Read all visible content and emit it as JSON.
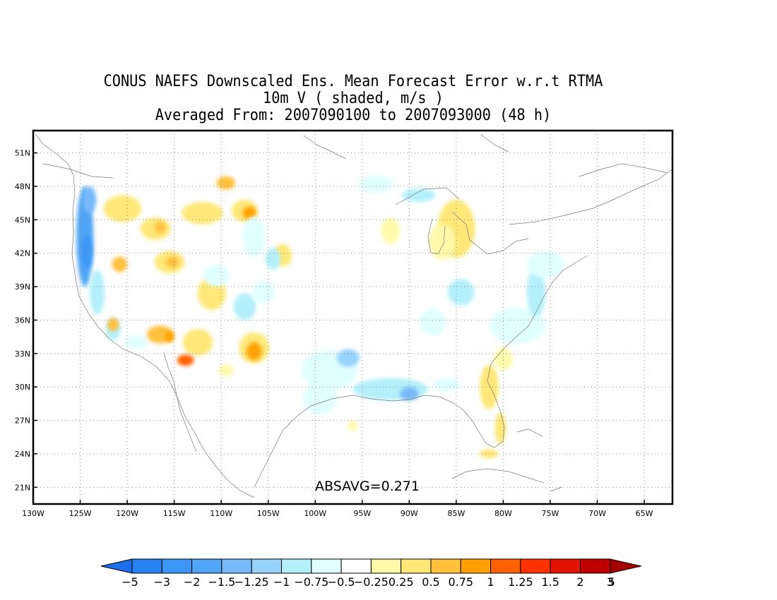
{
  "title_lines": [
    "CONUS NAEFS Downscaled Ens. Mean Forecast Error w.r.t RTMA",
    "10m V ( shaded, m/s )",
    "Averaged From: 2007090100 to 2007093000 (48 h)"
  ],
  "annotation": "ABSAVG=0.271",
  "map": {
    "lon_range": [
      -130,
      -62
    ],
    "lat_range": [
      19.5,
      53
    ],
    "lon_ticks": [
      {
        "v": -130,
        "label": "130W"
      },
      {
        "v": -125,
        "label": "125W"
      },
      {
        "v": -120,
        "label": "120W"
      },
      {
        "v": -115,
        "label": "115W"
      },
      {
        "v": -110,
        "label": "110W"
      },
      {
        "v": -105,
        "label": "105W"
      },
      {
        "v": -100,
        "label": "100W"
      },
      {
        "v": -95,
        "label": "95W"
      },
      {
        "v": -90,
        "label": "90W"
      },
      {
        "v": -85,
        "label": "85W"
      },
      {
        "v": -80,
        "label": "80W"
      },
      {
        "v": -75,
        "label": "75W"
      },
      {
        "v": -70,
        "label": "70W"
      },
      {
        "v": -65,
        "label": "65W"
      }
    ],
    "lat_ticks": [
      {
        "v": 21,
        "label": "21N"
      },
      {
        "v": 24,
        "label": "24N"
      },
      {
        "v": 27,
        "label": "27N"
      },
      {
        "v": 30,
        "label": "30N"
      },
      {
        "v": 33,
        "label": "33N"
      },
      {
        "v": 36,
        "label": "36N"
      },
      {
        "v": 39,
        "label": "39N"
      },
      {
        "v": 42,
        "label": "42N"
      },
      {
        "v": 45,
        "label": "45N"
      },
      {
        "v": 48,
        "label": "48N"
      },
      {
        "v": 51,
        "label": "51N"
      }
    ],
    "grid": true,
    "blobs": [
      {
        "lon": -124.5,
        "lat": 43.5,
        "rx": 0.9,
        "ry": 4.5,
        "level": -1.5
      },
      {
        "lon": -124.3,
        "lat": 42.1,
        "rx": 0.6,
        "ry": 1.5,
        "level": -2
      },
      {
        "lon": -124.0,
        "lat": 46.8,
        "rx": 0.7,
        "ry": 1.2,
        "level": -1.25
      },
      {
        "lon": -123.2,
        "lat": 38.5,
        "rx": 0.8,
        "ry": 2.0,
        "level": -0.75
      },
      {
        "lon": -121.5,
        "lat": 35.2,
        "rx": 0.8,
        "ry": 1.0,
        "level": -0.75
      },
      {
        "lon": -119.0,
        "lat": 34.0,
        "rx": 1.2,
        "ry": 0.6,
        "level": -0.5
      },
      {
        "lon": -120.5,
        "lat": 46.0,
        "rx": 2.0,
        "ry": 1.2,
        "level": 0.5
      },
      {
        "lon": -117.0,
        "lat": 44.2,
        "rx": 1.6,
        "ry": 1.0,
        "level": 0.5
      },
      {
        "lon": -116.5,
        "lat": 44.3,
        "rx": 0.6,
        "ry": 0.5,
        "level": 0.75
      },
      {
        "lon": -112.0,
        "lat": 45.6,
        "rx": 2.2,
        "ry": 1.0,
        "level": 0.5
      },
      {
        "lon": -109.5,
        "lat": 48.3,
        "rx": 1.0,
        "ry": 0.6,
        "level": 0.75
      },
      {
        "lon": -107.5,
        "lat": 45.8,
        "rx": 1.4,
        "ry": 1.0,
        "level": 0.5
      },
      {
        "lon": -107.0,
        "lat": 45.6,
        "rx": 0.7,
        "ry": 0.6,
        "level": 1
      },
      {
        "lon": -120.8,
        "lat": 41.0,
        "rx": 0.8,
        "ry": 0.7,
        "level": 0.75
      },
      {
        "lon": -115.5,
        "lat": 41.2,
        "rx": 1.6,
        "ry": 1.0,
        "level": 0.5
      },
      {
        "lon": -115.2,
        "lat": 41.2,
        "rx": 0.7,
        "ry": 0.5,
        "level": 0.75
      },
      {
        "lon": -111.0,
        "lat": 38.4,
        "rx": 1.5,
        "ry": 1.5,
        "level": 0.5
      },
      {
        "lon": -103.5,
        "lat": 41.8,
        "rx": 1.0,
        "ry": 1.0,
        "level": 0.5
      },
      {
        "lon": -116.5,
        "lat": 34.7,
        "rx": 1.4,
        "ry": 0.8,
        "level": 0.75
      },
      {
        "lon": -115.5,
        "lat": 34.5,
        "rx": 0.5,
        "ry": 0.5,
        "level": 1
      },
      {
        "lon": -112.5,
        "lat": 34.0,
        "rx": 1.6,
        "ry": 1.2,
        "level": 0.5
      },
      {
        "lon": -113.8,
        "lat": 32.4,
        "rx": 0.9,
        "ry": 0.5,
        "level": 1.25
      },
      {
        "lon": -106.5,
        "lat": 33.5,
        "rx": 1.6,
        "ry": 1.4,
        "level": 0.5
      },
      {
        "lon": -106.5,
        "lat": 33.2,
        "rx": 0.8,
        "ry": 0.8,
        "level": 1
      },
      {
        "lon": -121.5,
        "lat": 35.6,
        "rx": 0.6,
        "ry": 0.6,
        "level": 0.75
      },
      {
        "lon": -109.5,
        "lat": 31.5,
        "rx": 0.8,
        "ry": 0.5,
        "level": 0.25
      },
      {
        "lon": -107.5,
        "lat": 37.2,
        "rx": 1.2,
        "ry": 1.2,
        "level": -0.75
      },
      {
        "lon": -105.5,
        "lat": 38.5,
        "rx": 1.2,
        "ry": 1.0,
        "level": -0.5
      },
      {
        "lon": -110.5,
        "lat": 40.0,
        "rx": 1.4,
        "ry": 1.0,
        "level": -0.5
      },
      {
        "lon": -106.5,
        "lat": 43.5,
        "rx": 1.2,
        "ry": 1.8,
        "level": -0.5
      },
      {
        "lon": -104.5,
        "lat": 41.5,
        "rx": 0.8,
        "ry": 1.0,
        "level": -0.75
      },
      {
        "lon": -98.0,
        "lat": 47.0,
        "rx": 3.0,
        "ry": 1.2,
        "level": -0.25
      },
      {
        "lon": -93.5,
        "lat": 48.2,
        "rx": 1.8,
        "ry": 0.8,
        "level": -0.5
      },
      {
        "lon": -89.0,
        "lat": 47.2,
        "rx": 1.8,
        "ry": 0.6,
        "level": -0.75
      },
      {
        "lon": -92.0,
        "lat": 44.0,
        "rx": 1.0,
        "ry": 1.2,
        "level": 0.25
      },
      {
        "lon": -85.0,
        "lat": 44.2,
        "rx": 2.0,
        "ry": 2.6,
        "level": 0.5
      },
      {
        "lon": -86.5,
        "lat": 43.0,
        "rx": 1.4,
        "ry": 1.6,
        "level": 0.25
      },
      {
        "lon": -86.0,
        "lat": 37.5,
        "rx": 4.5,
        "ry": 3.0,
        "level": -0.25
      },
      {
        "lon": -84.5,
        "lat": 38.5,
        "rx": 1.4,
        "ry": 1.2,
        "level": -0.75
      },
      {
        "lon": -87.5,
        "lat": 35.8,
        "rx": 1.4,
        "ry": 1.2,
        "level": -0.5
      },
      {
        "lon": -78.5,
        "lat": 35.5,
        "rx": 3.0,
        "ry": 1.6,
        "level": -0.5
      },
      {
        "lon": -76.5,
        "lat": 38.5,
        "rx": 1.0,
        "ry": 2.2,
        "level": -0.75
      },
      {
        "lon": -75.5,
        "lat": 41.0,
        "rx": 2.0,
        "ry": 1.2,
        "level": -0.5
      },
      {
        "lon": -71.0,
        "lat": 43.0,
        "rx": 3.0,
        "ry": 1.2,
        "level": -0.25
      },
      {
        "lon": -69.0,
        "lat": 45.0,
        "rx": 2.0,
        "ry": 1.0,
        "level": -0.25
      },
      {
        "lon": -98.5,
        "lat": 31.5,
        "rx": 3.0,
        "ry": 1.8,
        "level": -0.5
      },
      {
        "lon": -96.5,
        "lat": 32.6,
        "rx": 1.2,
        "ry": 0.8,
        "level": -1
      },
      {
        "lon": -99.5,
        "lat": 29.0,
        "rx": 1.8,
        "ry": 1.5,
        "level": -0.5
      },
      {
        "lon": -92.0,
        "lat": 29.8,
        "rx": 4.0,
        "ry": 1.0,
        "level": -0.75
      },
      {
        "lon": -90.0,
        "lat": 29.4,
        "rx": 1.0,
        "ry": 0.6,
        "level": -1.25
      },
      {
        "lon": -86.0,
        "lat": 30.2,
        "rx": 1.4,
        "ry": 0.6,
        "level": -0.5
      },
      {
        "lon": -81.5,
        "lat": 30.0,
        "rx": 1.0,
        "ry": 2.0,
        "level": 0.5
      },
      {
        "lon": -80.3,
        "lat": 26.3,
        "rx": 0.6,
        "ry": 1.4,
        "level": 0.5
      },
      {
        "lon": -81.5,
        "lat": 24.0,
        "rx": 1.0,
        "ry": 0.4,
        "level": 0.5
      },
      {
        "lon": -96.0,
        "lat": 26.5,
        "rx": 0.5,
        "ry": 0.5,
        "level": 0.25
      },
      {
        "lon": -88.5,
        "lat": 33.0,
        "rx": 2.0,
        "ry": 1.4,
        "level": -0.25
      },
      {
        "lon": -80.0,
        "lat": 32.5,
        "rx": 1.0,
        "ry": 1.0,
        "level": 0.25
      }
    ]
  },
  "colorbar": {
    "labels": [
      "-5",
      "-3",
      "-2",
      "-1.5",
      "-1.25",
      "-1",
      "-0.75",
      "-0.5",
      "-0.25",
      "0.25",
      "0.5",
      "0.75",
      "1",
      "1.25",
      "1.5",
      "2",
      "3",
      "5"
    ],
    "colors": [
      "#1e6eeb",
      "#2882f0",
      "#3c96f5",
      "#50a5f5",
      "#78b9fa",
      "#96d2fa",
      "#b4f0fa",
      "#e1ffff",
      "#ffffff",
      "#fffaaa",
      "#ffe878",
      "#ffc03c",
      "#ffa000",
      "#ff6000",
      "#ff3200",
      "#e11400",
      "#c00000",
      "#a50000"
    ]
  }
}
